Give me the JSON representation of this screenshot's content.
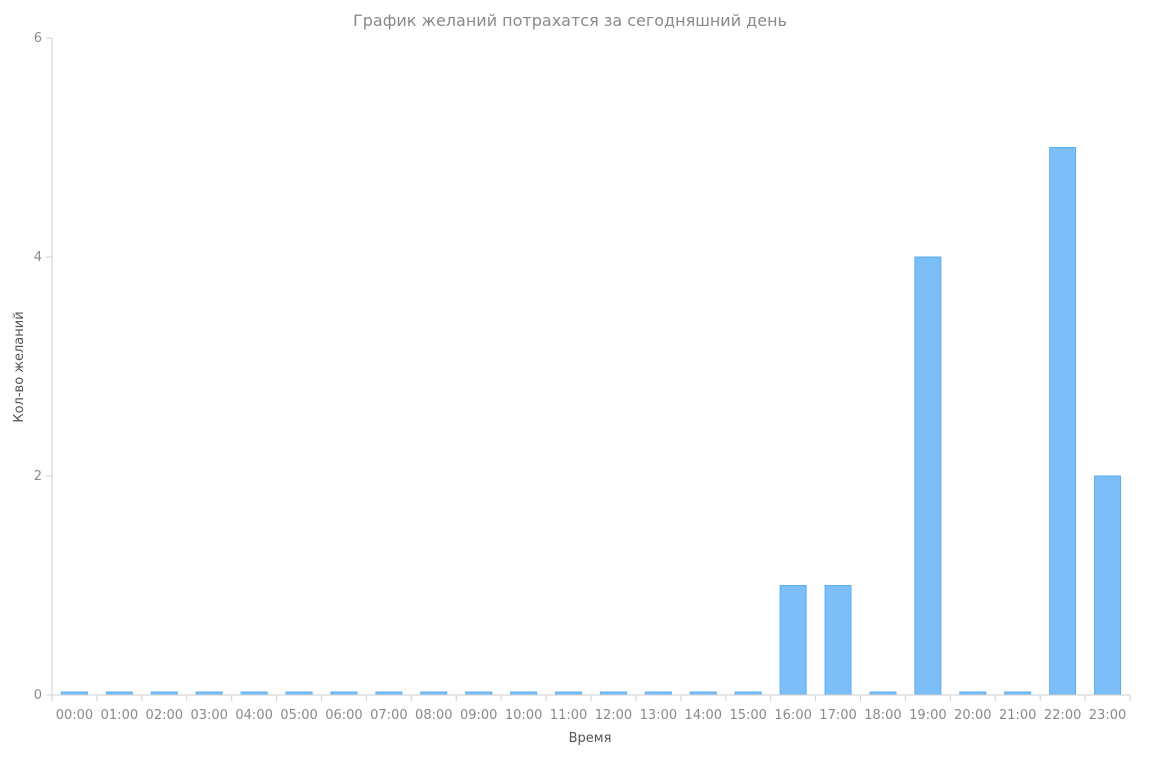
{
  "chart_data": {
    "type": "bar",
    "title": "График желаний потрахатся за сегодняшний день",
    "xlabel": "Время",
    "ylabel": "Кол-во желаний",
    "categories": [
      "00:00",
      "01:00",
      "02:00",
      "03:00",
      "04:00",
      "05:00",
      "06:00",
      "07:00",
      "08:00",
      "09:00",
      "10:00",
      "11:00",
      "12:00",
      "13:00",
      "14:00",
      "15:00",
      "16:00",
      "17:00",
      "18:00",
      "19:00",
      "20:00",
      "21:00",
      "22:00",
      "23:00"
    ],
    "values": [
      0,
      0,
      0,
      0,
      0,
      0,
      0,
      0,
      0,
      0,
      0,
      0,
      0,
      0,
      0,
      0,
      1,
      1,
      0,
      4,
      0,
      0,
      5,
      2
    ],
    "ylim": [
      0,
      6
    ],
    "yticks": [
      0,
      2,
      4,
      6
    ],
    "grid": false,
    "colors": {
      "bar": "#7cbff8",
      "bar_border": "#5aaef2"
    }
  }
}
